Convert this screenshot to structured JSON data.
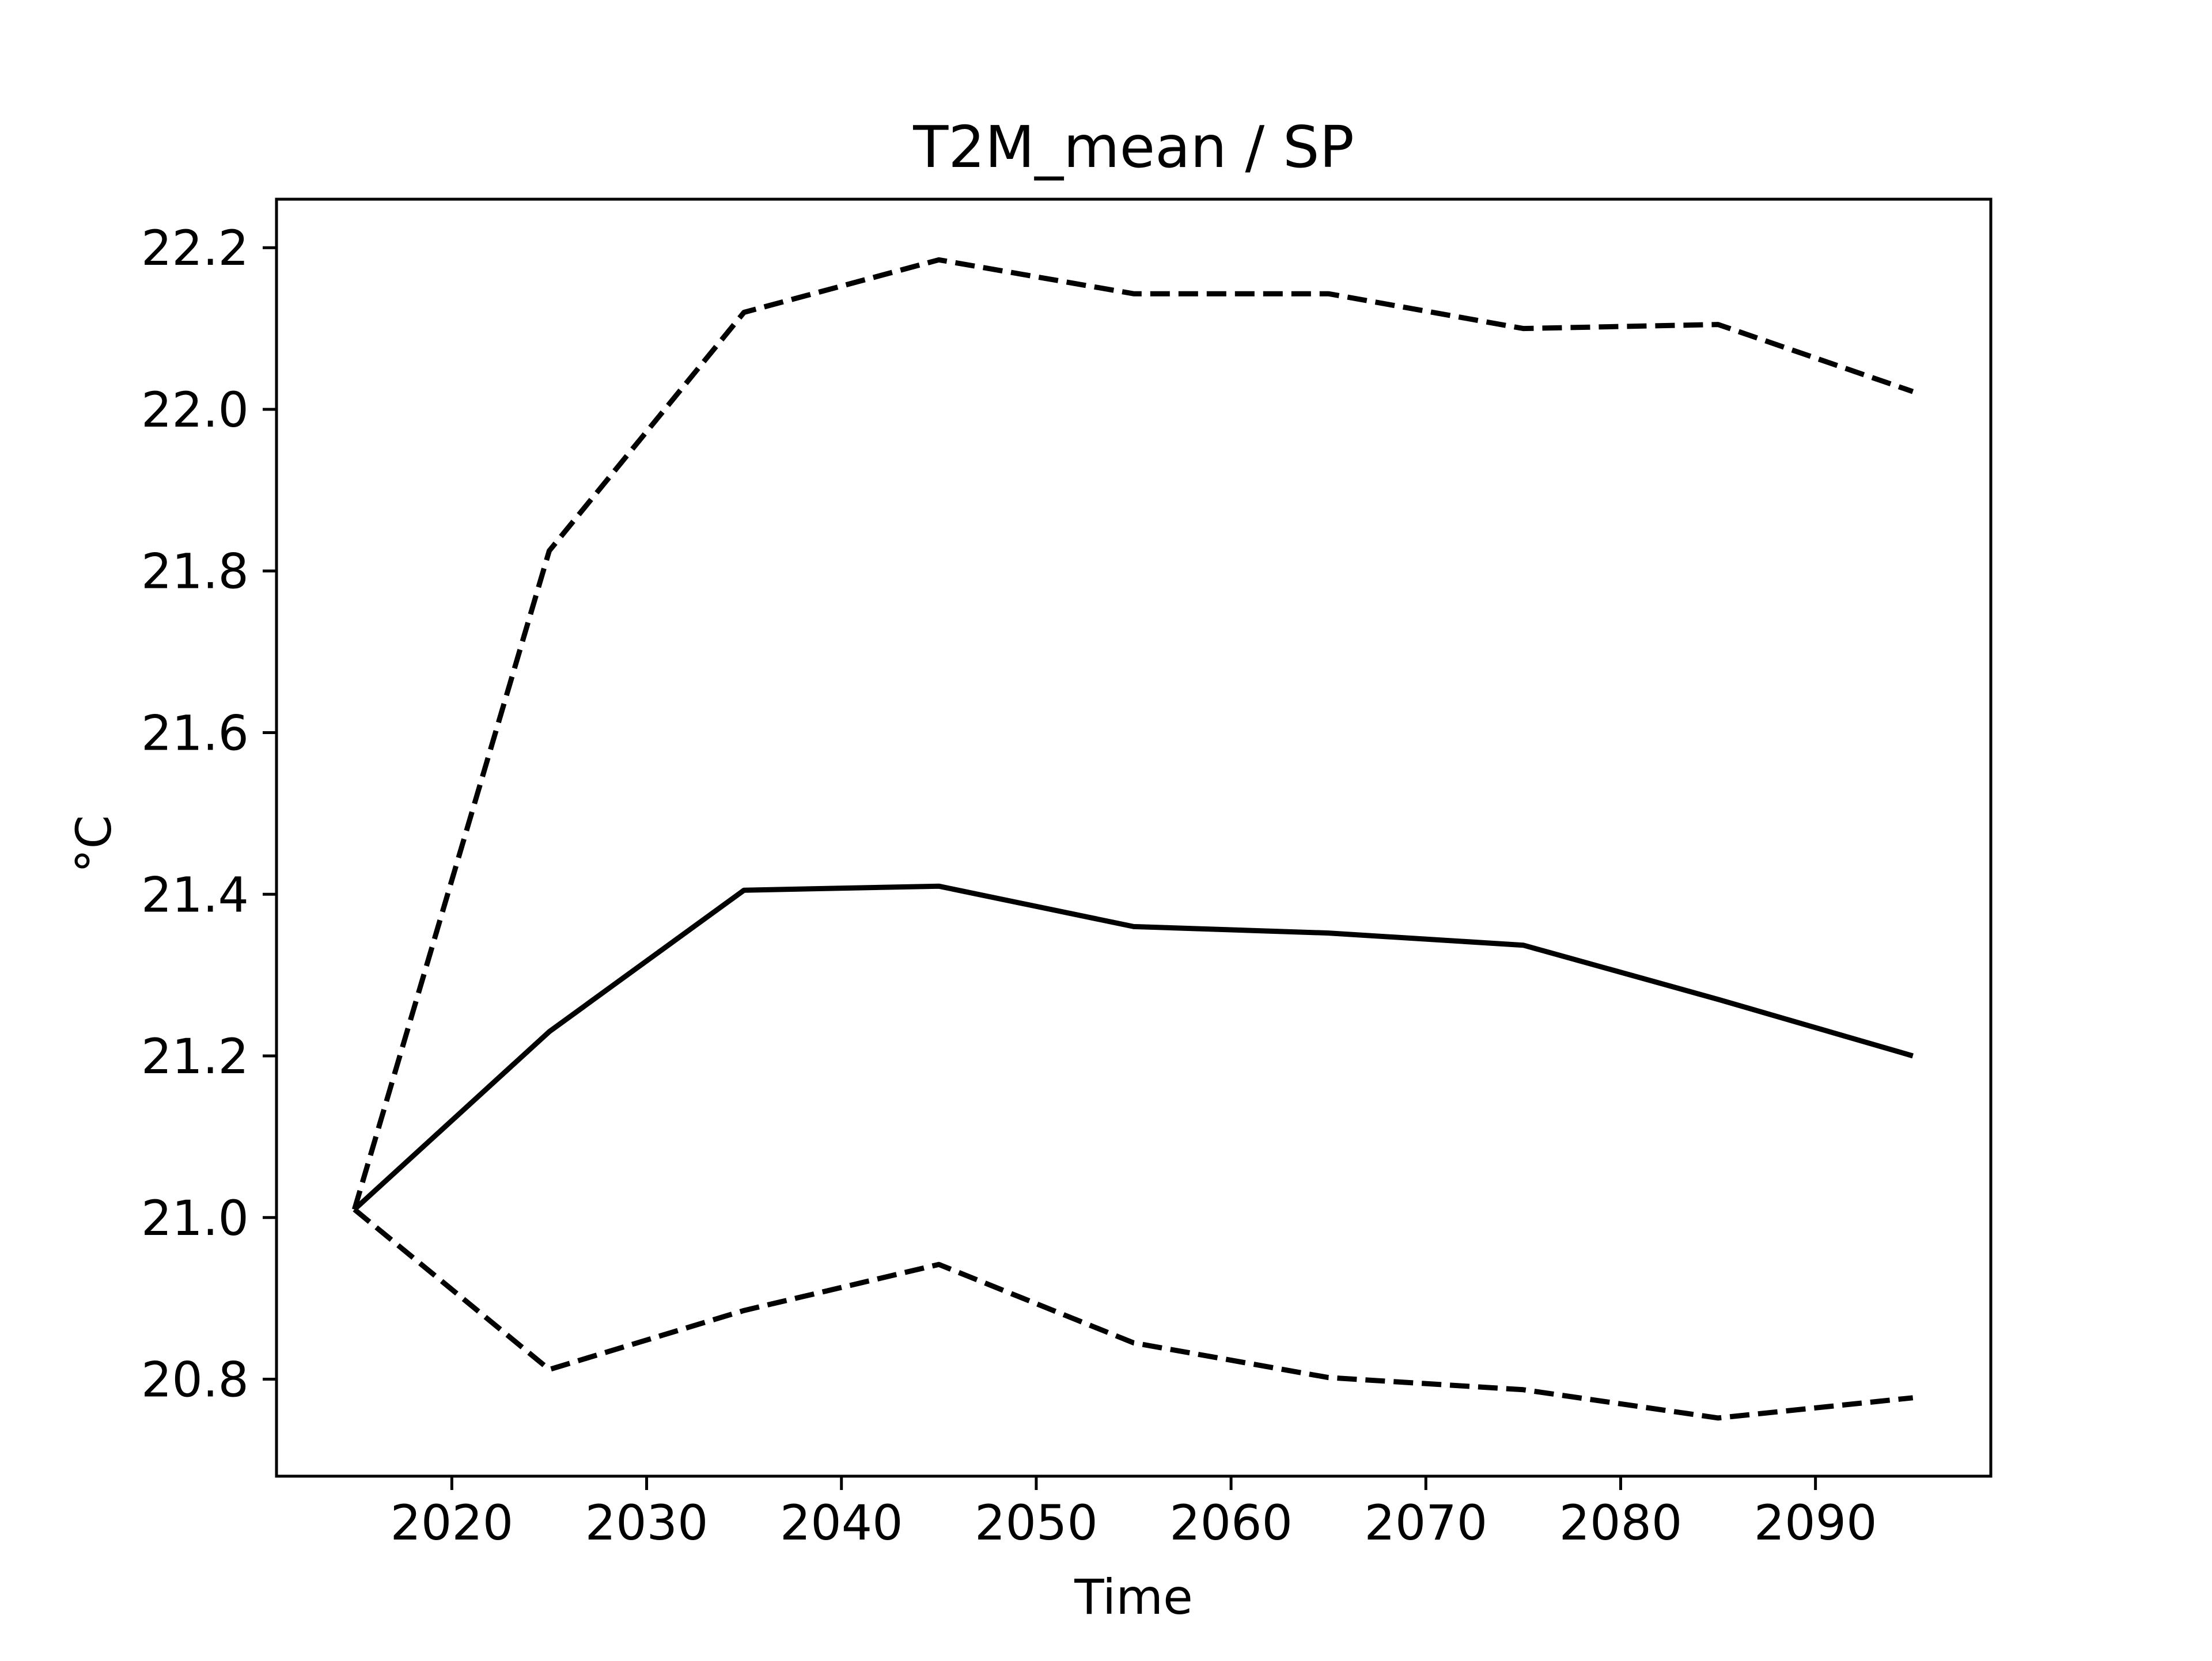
{
  "chart_data": {
    "type": "line",
    "title": "T2M_mean / SP",
    "xlabel": "Time",
    "ylabel": "°C",
    "xlim": [
      2011,
      2099
    ],
    "ylim": [
      20.68,
      22.26
    ],
    "grid": false,
    "legend": "none",
    "x": [
      2015,
      2025,
      2035,
      2045,
      2055,
      2065,
      2075,
      2085,
      2095
    ],
    "xticks": [
      2020,
      2030,
      2040,
      2050,
      2060,
      2070,
      2080,
      2090
    ],
    "yticks": [
      20.8,
      21.0,
      21.2,
      21.4,
      21.6,
      21.8,
      22.0,
      22.2
    ],
    "ytick_labels": [
      "20.8",
      "21.0",
      "21.2",
      "21.4",
      "21.6",
      "21.8",
      "22.0",
      "22.2"
    ],
    "series": [
      {
        "style": "solid",
        "color": "#000000",
        "values": [
          21.01,
          21.23,
          21.405,
          21.41,
          21.36,
          21.352,
          21.337,
          21.27,
          21.2
        ]
      },
      {
        "style": "dashed",
        "color": "#000000",
        "values": [
          21.01,
          21.825,
          22.12,
          22.185,
          22.143,
          22.143,
          22.1,
          22.105,
          22.022
        ]
      },
      {
        "style": "dashed",
        "color": "#000000",
        "values": [
          21.01,
          20.812,
          20.885,
          20.942,
          20.845,
          20.802,
          20.787,
          20.752,
          20.777
        ]
      }
    ]
  }
}
